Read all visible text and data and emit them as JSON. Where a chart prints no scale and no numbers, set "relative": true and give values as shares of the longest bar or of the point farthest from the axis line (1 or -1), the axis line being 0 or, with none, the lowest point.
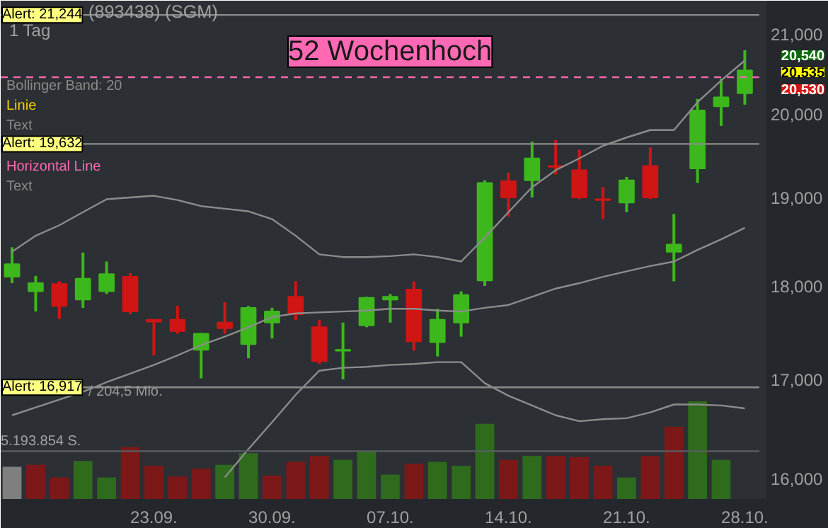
{
  "chart_data": [
    {
      "type": "candlestick",
      "title": "(893438) (SGM)",
      "categories": [
        null,
        null,
        null,
        null,
        null,
        null,
        "23.09.",
        null,
        null,
        null,
        null,
        "30.09.",
        null,
        null,
        null,
        null,
        "07.10.",
        null,
        null,
        null,
        null,
        "14.10.",
        null,
        null,
        null,
        null,
        "21.10.",
        null,
        null,
        null,
        null,
        "28.10."
      ],
      "ohlc": [
        [
          18100,
          18430,
          18030,
          18240
        ],
        [
          17940,
          18110,
          17720,
          18030
        ],
        [
          18020,
          18050,
          17640,
          17780
        ],
        [
          17850,
          18370,
          17760,
          18080
        ],
        [
          17940,
          18270,
          17910,
          18130
        ],
        [
          18100,
          18140,
          17690,
          17720
        ],
        [
          17630,
          17630,
          17250,
          17610
        ],
        [
          17630,
          17780,
          17480,
          17510
        ],
        [
          17310,
          17490,
          17010,
          17480
        ],
        [
          17600,
          17820,
          17480,
          17540
        ],
        [
          17370,
          17780,
          17220,
          17760
        ],
        [
          17600,
          17760,
          17430,
          17720
        ],
        [
          17880,
          18050,
          17630,
          17690
        ],
        [
          17550,
          17630,
          17160,
          17190
        ],
        [
          17300,
          17600,
          17000,
          17310
        ],
        [
          17570,
          17880,
          17550,
          17870
        ],
        [
          17850,
          17910,
          17600,
          17880
        ],
        [
          17960,
          18050,
          17300,
          17400
        ],
        [
          17390,
          17750,
          17240,
          17630
        ],
        [
          17600,
          17940,
          17450,
          17900
        ],
        [
          18060,
          19200,
          18000,
          19170
        ],
        [
          19190,
          19290,
          18780,
          19000
        ],
        [
          19200,
          19660,
          19000,
          19460
        ],
        [
          19370,
          19680,
          19270,
          19360
        ],
        [
          19320,
          19560,
          18980,
          19000
        ],
        [
          18980,
          19120,
          18750,
          18970
        ],
        [
          18940,
          19240,
          18830,
          19200
        ],
        [
          19370,
          19590,
          18980,
          19000
        ],
        [
          18380,
          18810,
          18050,
          18460
        ],
        [
          19340,
          20180,
          19170,
          20040
        ],
        [
          20090,
          20430,
          19850,
          20200
        ],
        [
          20250,
          20790,
          20110,
          20535
        ]
      ],
      "colors": [
        "#3db81c",
        "#3db81c",
        "#d01515",
        "#3db81c",
        "#3db81c",
        "#d01515",
        "#d01515",
        "#d01515",
        "#3db81c",
        "#d01515",
        "#3db81c",
        "#3db81c",
        "#d01515",
        "#d01515",
        "#3db81c",
        "#3db81c",
        "#3db81c",
        "#d01515",
        "#3db81c",
        "#3db81c",
        "#3db81c",
        "#d01515",
        "#3db81c",
        "#d01515",
        "#d01515",
        "#d01515",
        "#3db81c",
        "#d01515",
        "#3db81c",
        "#3db81c",
        "#3db81c",
        "#3db81c"
      ],
      "series": [
        {
          "type": "line",
          "color": "#8c8c8c",
          "values": [
            18380,
            18560,
            18680,
            18830,
            18980,
            19000,
            19020,
            18970,
            18900,
            18870,
            18840,
            18750,
            18560,
            18350,
            18320,
            18320,
            18330,
            18350,
            18320,
            18270,
            18540,
            18830,
            19120,
            19320,
            19460,
            19610,
            19710,
            19800,
            19800,
            20140,
            20410,
            20660
          ]
        },
        {
          "type": "line",
          "color": "#8c8c8c",
          "values": [
            16630,
            16710,
            16790,
            16870,
            16970,
            17060,
            17150,
            17250,
            17360,
            17450,
            17550,
            17660,
            17700,
            17710,
            17720,
            17730,
            17750,
            17750,
            17730,
            17720,
            17760,
            17790,
            17880,
            17970,
            18030,
            18100,
            18160,
            18220,
            18270,
            18400,
            18520,
            18650
          ]
        },
        {
          "type": "line",
          "color": "#8c8c8c",
          "values": [
            null,
            null,
            null,
            null,
            null,
            null,
            null,
            null,
            null,
            16010,
            16290,
            16560,
            16840,
            17090,
            17120,
            17130,
            17150,
            17160,
            17180,
            17180,
            16960,
            16830,
            16730,
            16630,
            16570,
            16590,
            16600,
            16660,
            16740,
            16740,
            16730,
            16700
          ]
        }
      ],
      "log": true,
      "ylim": [
        15800,
        21430
      ],
      "yticks": [
        {
          "value": 16000,
          "label": "16,000"
        },
        {
          "value": 17000,
          "label": "17,000"
        },
        {
          "value": 18000,
          "label": "18,000"
        },
        {
          "value": 19000,
          "label": "19,000"
        },
        {
          "value": 20000,
          "label": "20,000"
        },
        {
          "value": 21000,
          "label": "21,000"
        }
      ],
      "grid": false,
      "tick_labels": "y",
      "ref_lines": [
        {
          "axis": "y",
          "value": 21244,
          "label": "Alert: 21,244",
          "color": "#8c8c8c"
        },
        {
          "axis": "y",
          "value": 19632,
          "label": "Alert: 19,632",
          "color": "#8c8c8c"
        },
        {
          "axis": "y",
          "value": 16917,
          "label": "Alert: 16,917",
          "color": "#8c8c8c"
        },
        {
          "axis": "y",
          "value": 20450,
          "label": "52 Wochenhoch",
          "color": "#ff69b4",
          "line_style": "dashed"
        }
      ],
      "annotations": [
        "1 Tag",
        "Bollinger Band: 20",
        "Linie",
        "Text",
        "Horizontal Line",
        "Text",
        "/ 204,5 Mio.",
        "20,540",
        "20,535",
        "20,530"
      ]
    },
    {
      "type": "bar",
      "relative": true,
      "tick_labels": "x",
      "categories": [
        null,
        null,
        null,
        null,
        null,
        null,
        "23.09.",
        null,
        null,
        null,
        null,
        "30.09.",
        null,
        null,
        null,
        null,
        "07.10.",
        null,
        null,
        null,
        null,
        "14.10.",
        null,
        null,
        null,
        null,
        "21.10.",
        null,
        null,
        null,
        null,
        "28.10."
      ],
      "values": [
        0.33,
        0.35,
        0.22,
        0.39,
        0.22,
        0.53,
        0.34,
        0.23,
        0.31,
        0.35,
        0.47,
        0.24,
        0.38,
        0.44,
        0.4,
        0.49,
        0.25,
        0.36,
        0.38,
        0.34,
        0.77,
        0.4,
        0.44,
        0.44,
        0.43,
        0.34,
        0.22,
        0.44,
        0.74,
        1,
        0.4,
        null
      ],
      "colors": [
        "#7f7f7f",
        "#7d1818",
        "#7d1818",
        "#2e6b1c",
        "#2e6b1c",
        "#7d1818",
        "#7d1818",
        "#7d1818",
        "#7d1818",
        "#2e6b1c",
        "#2e6b1c",
        "#7d1818",
        "#7d1818",
        "#7d1818",
        "#2e6b1c",
        "#2e6b1c",
        "#2e6b1c",
        "#7d1818",
        "#2e6b1c",
        "#2e6b1c",
        "#2e6b1c",
        "#7d1818",
        "#2e6b1c",
        "#7d1818",
        "#7d1818",
        "#7d1818",
        "#2e6b1c",
        "#7d1818",
        "#7d1818",
        "#2e6b1c",
        "#2e6b1c",
        "#2e6b1c"
      ],
      "ref_lines": [
        {
          "axis": "y",
          "value": 0.49,
          "label": "5.193.854 S.",
          "color": "#5a5e62"
        }
      ]
    }
  ]
}
